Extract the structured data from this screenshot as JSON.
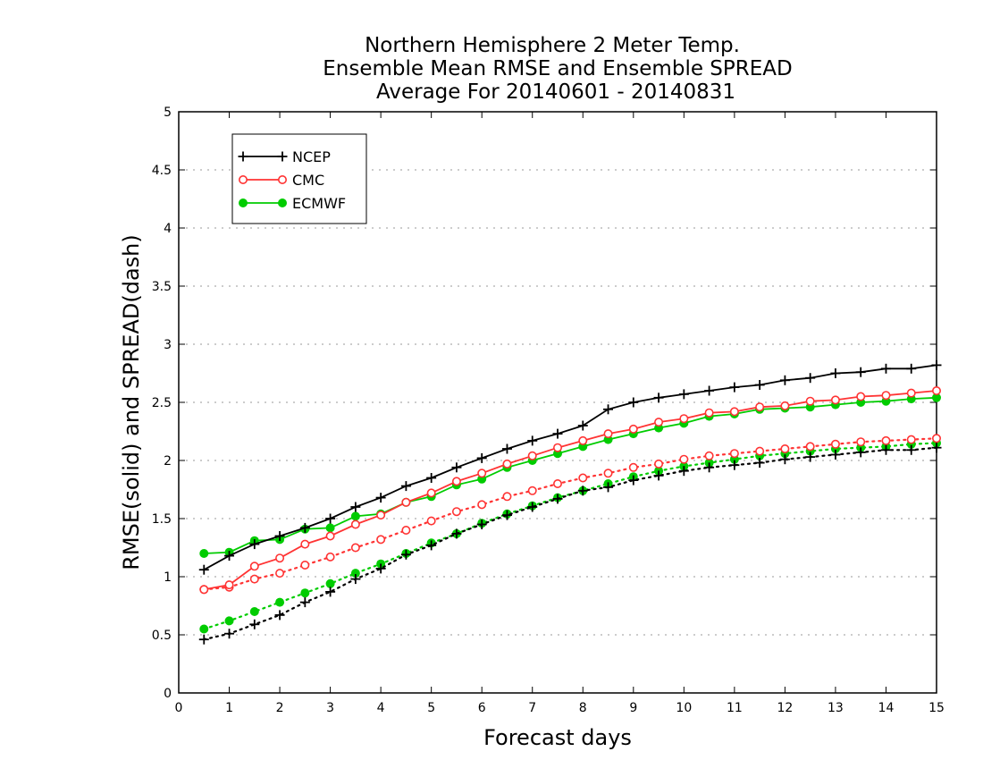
{
  "chart_data": {
    "type": "line",
    "title_lines": [
      "Northern Hemisphere 2 Meter Temp.",
      "Ensemble Mean RMSE and Ensemble SPREAD",
      "Average For 20140601 - 20140831"
    ],
    "xlabel": "Forecast days",
    "ylabel": "RMSE(solid) and SPREAD(dash)",
    "xlim": [
      0,
      15
    ],
    "ylim": [
      0,
      5
    ],
    "x_ticks": [
      "0",
      "1",
      "2",
      "3",
      "4",
      "5",
      "6",
      "7",
      "8",
      "9",
      "10",
      "11",
      "12",
      "13",
      "14",
      "15"
    ],
    "y_ticks": [
      "0",
      "0.5",
      "1",
      "1.5",
      "2",
      "2.5",
      "3",
      "3.5",
      "4",
      "4.5",
      "5"
    ],
    "grid": "horizontal dotted",
    "legend_position": "top-left",
    "x": [
      0.5,
      1,
      1.5,
      2,
      2.5,
      3,
      3.5,
      4,
      4.5,
      5,
      5.5,
      6,
      6.5,
      7,
      7.5,
      8,
      8.5,
      9,
      9.5,
      10,
      10.5,
      11,
      11.5,
      12,
      12.5,
      13,
      13.5,
      14,
      14.5,
      15
    ],
    "series": [
      {
        "name": "NCEP",
        "color": "#000000",
        "marker": "plus",
        "rmse": [
          1.06,
          1.18,
          1.28,
          1.35,
          1.42,
          1.5,
          1.6,
          1.68,
          1.78,
          1.85,
          1.94,
          2.02,
          2.1,
          2.17,
          2.23,
          2.3,
          2.44,
          2.5,
          2.54,
          2.57,
          2.6,
          2.63,
          2.65,
          2.69,
          2.71,
          2.75,
          2.76,
          2.79,
          2.79,
          2.82
        ],
        "spread": [
          0.46,
          0.51,
          0.59,
          0.67,
          0.78,
          0.87,
          0.98,
          1.07,
          1.19,
          1.27,
          1.37,
          1.45,
          1.53,
          1.6,
          1.67,
          1.74,
          1.77,
          1.83,
          1.87,
          1.91,
          1.94,
          1.96,
          1.98,
          2.01,
          2.03,
          2.05,
          2.07,
          2.09,
          2.09,
          2.11
        ]
      },
      {
        "name": "CMC",
        "color": "#ff3333",
        "marker": "open-circle",
        "rmse": [
          0.89,
          0.93,
          1.09,
          1.16,
          1.28,
          1.35,
          1.45,
          1.53,
          1.64,
          1.72,
          1.82,
          1.89,
          1.97,
          2.04,
          2.11,
          2.17,
          2.23,
          2.27,
          2.33,
          2.36,
          2.41,
          2.42,
          2.46,
          2.47,
          2.51,
          2.52,
          2.55,
          2.56,
          2.58,
          2.6
        ],
        "spread": [
          0.89,
          0.91,
          0.98,
          1.03,
          1.1,
          1.17,
          1.25,
          1.32,
          1.4,
          1.48,
          1.56,
          1.62,
          1.69,
          1.74,
          1.8,
          1.85,
          1.89,
          1.94,
          1.97,
          2.01,
          2.04,
          2.06,
          2.08,
          2.1,
          2.12,
          2.14,
          2.16,
          2.17,
          2.18,
          2.19
        ]
      },
      {
        "name": "ECMWF",
        "color": "#00cc00",
        "marker": "filled-circle",
        "rmse": [
          1.2,
          1.21,
          1.31,
          1.32,
          1.41,
          1.42,
          1.52,
          1.54,
          1.64,
          1.69,
          1.79,
          1.84,
          1.94,
          2.0,
          2.06,
          2.12,
          2.18,
          2.23,
          2.28,
          2.32,
          2.38,
          2.4,
          2.44,
          2.45,
          2.46,
          2.48,
          2.5,
          2.51,
          2.53,
          2.54
        ],
        "spread": [
          0.55,
          0.62,
          0.7,
          0.78,
          0.86,
          0.94,
          1.03,
          1.11,
          1.2,
          1.29,
          1.37,
          1.46,
          1.54,
          1.61,
          1.68,
          1.74,
          1.8,
          1.86,
          1.91,
          1.95,
          1.98,
          2.01,
          2.04,
          2.06,
          2.08,
          2.1,
          2.11,
          2.12,
          2.14,
          2.15
        ]
      }
    ]
  }
}
